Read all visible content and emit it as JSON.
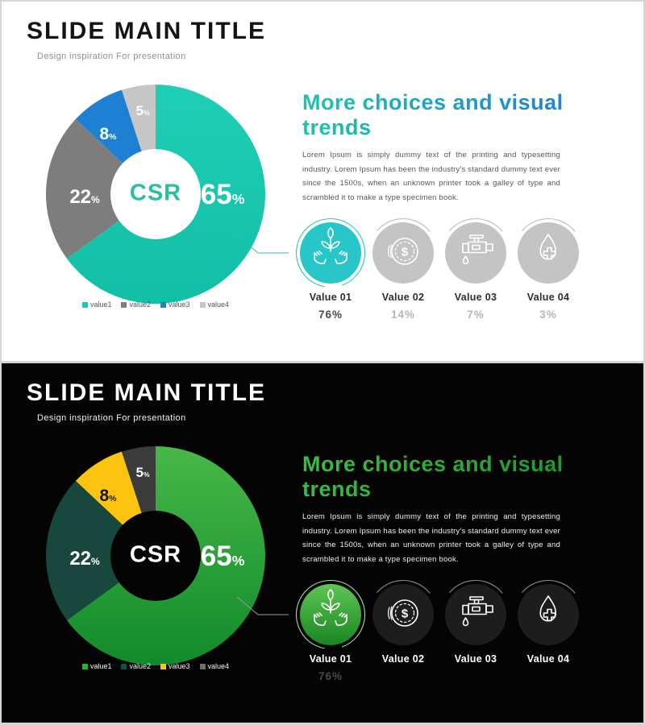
{
  "shared": {
    "percent_sign": "%",
    "coin_symbol": "$"
  },
  "light": {
    "title": "SLIDE MAIN TITLE",
    "subtitle": "Design inspiration For presentation",
    "center_label": "CSR",
    "slices": [
      {
        "value": "65"
      },
      {
        "value": "22"
      },
      {
        "value": "8"
      },
      {
        "value": "5"
      }
    ],
    "legend": [
      {
        "label": "value1"
      },
      {
        "label": "value2"
      },
      {
        "label": "value3"
      },
      {
        "label": "value4"
      }
    ],
    "heading": "More choices and visual trends",
    "body": "Lorem Ipsum is simply dummy text of the printing and typesetting industry. Lorem Ipsum has been the industry's standard dummy text ever since the 1500s, when an unknown printer took a galley of type and scrambled it to make a type specimen book.",
    "badges": [
      {
        "label": "Value 01",
        "value": "76%"
      },
      {
        "label": "Value 02",
        "value": "14%"
      },
      {
        "label": "Value 03",
        "value": "7%"
      },
      {
        "label": "Value 04",
        "value": "3%"
      }
    ],
    "colors": {
      "slice1": "#1fc7b0",
      "slice2": "#7d7d7d",
      "slice3": "#1d80d2",
      "slice4": "#c6c6c6",
      "heading_gradient": [
        "#1cc2ae",
        "#1e86d8"
      ],
      "badge_active": "#29c6c9",
      "badge_inactive": "#c4c4c4"
    }
  },
  "dark": {
    "title": "SLIDE MAIN TITLE",
    "subtitle": "Design inspiration For presentation",
    "center_label": "CSR",
    "slices": [
      {
        "value": "65"
      },
      {
        "value": "22"
      },
      {
        "value": "8"
      },
      {
        "value": "5"
      }
    ],
    "legend": [
      {
        "label": "value1"
      },
      {
        "label": "value2"
      },
      {
        "label": "value3"
      },
      {
        "label": "value4"
      }
    ],
    "heading": "More choices and visual trends",
    "body": "Lorem Ipsum is simply dummy text of the printing and typesetting industry. Lorem Ipsum has been the industry's standard dummy text ever since the 1500s, when an unknown printer took a galley of type and scrambled it to make a type specimen book.",
    "badges": [
      {
        "label": "Value 01",
        "value": "76%"
      },
      {
        "label": "Value 02",
        "value": ""
      },
      {
        "label": "Value 03",
        "value": ""
      },
      {
        "label": "Value 04",
        "value": ""
      }
    ],
    "colors": {
      "slice1": "#2ea335",
      "slice2": "#17473d",
      "slice3": "#fdc40f",
      "slice4": "#3b3b3b",
      "heading_green": "#2fae3a",
      "badge_active_gradient": [
        "#5ec654",
        "#1a8522"
      ],
      "badge_inactive": "#1d1d1d"
    }
  },
  "chart_data": [
    {
      "type": "pie",
      "variant": "donut",
      "theme": "light",
      "labels": [
        "value1",
        "value2",
        "value3",
        "value4"
      ],
      "values": [
        65,
        22,
        8,
        5
      ],
      "colors": [
        "#1fc7b0",
        "#7d7d7d",
        "#1d80d2",
        "#c6c6c6"
      ],
      "center_label": "CSR",
      "legend_position": "bottom",
      "data_labels": [
        "65%",
        "22%",
        "8%",
        "5%"
      ]
    },
    {
      "type": "pie",
      "variant": "donut",
      "theme": "dark",
      "labels": [
        "value1",
        "value2",
        "value3",
        "value4"
      ],
      "values": [
        65,
        22,
        8,
        5
      ],
      "colors": [
        "#2ea335",
        "#17473d",
        "#fdc40f",
        "#3b3b3b"
      ],
      "center_label": "CSR",
      "legend_position": "bottom",
      "data_labels": [
        "65%",
        "22%",
        "8%",
        "5%"
      ]
    },
    {
      "type": "bar",
      "note": "icon stat badges shown under both slides",
      "categories": [
        "Value 01",
        "Value 02",
        "Value 03",
        "Value 04"
      ],
      "values": [
        76,
        14,
        7,
        3
      ]
    }
  ]
}
